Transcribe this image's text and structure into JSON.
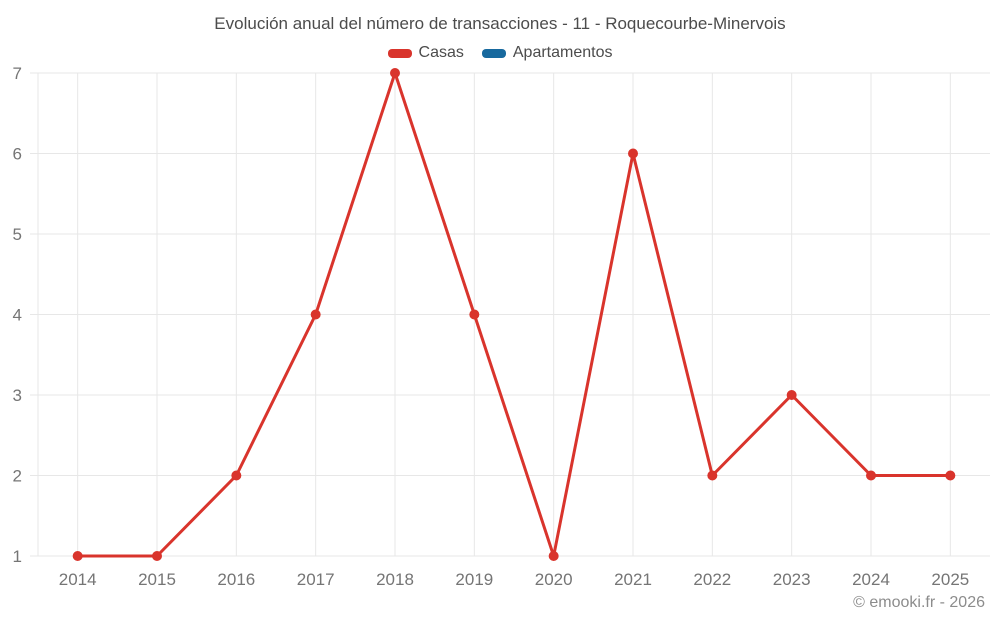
{
  "title": "Evolución anual del número de transacciones - 11 - Roquecourbe-Minervois",
  "legend": {
    "items": [
      {
        "label": "Casas",
        "color": "#d9342c"
      },
      {
        "label": "Apartamentos",
        "color": "#17699e"
      }
    ]
  },
  "footer": {
    "credit": "© emooki.fr - 2026"
  },
  "colors": {
    "grid": "#e7e7e7",
    "axis_label": "#757575",
    "title_text": "#4c4c4c",
    "footer_text": "#8c8c8c"
  },
  "chart_data": {
    "type": "line",
    "title": "Evolución anual del número de transacciones - 11 - Roquecourbe-Minervois",
    "categories": [
      "2014",
      "2015",
      "2016",
      "2017",
      "2018",
      "2019",
      "2020",
      "2021",
      "2022",
      "2023",
      "2024",
      "2025"
    ],
    "series": [
      {
        "name": "Casas",
        "color": "#d9342c",
        "values": [
          1,
          1,
          2,
          4,
          7,
          4,
          1,
          6,
          2,
          3,
          2,
          2
        ]
      },
      {
        "name": "Apartamentos",
        "color": "#17699e",
        "values": []
      }
    ],
    "xlabel": "",
    "ylabel": "",
    "ylim": [
      1,
      7
    ],
    "yticks": [
      1,
      2,
      3,
      4,
      5,
      6,
      7
    ],
    "grid": true,
    "legend_position": "top",
    "marker_radius": 5,
    "line_width": 3
  }
}
